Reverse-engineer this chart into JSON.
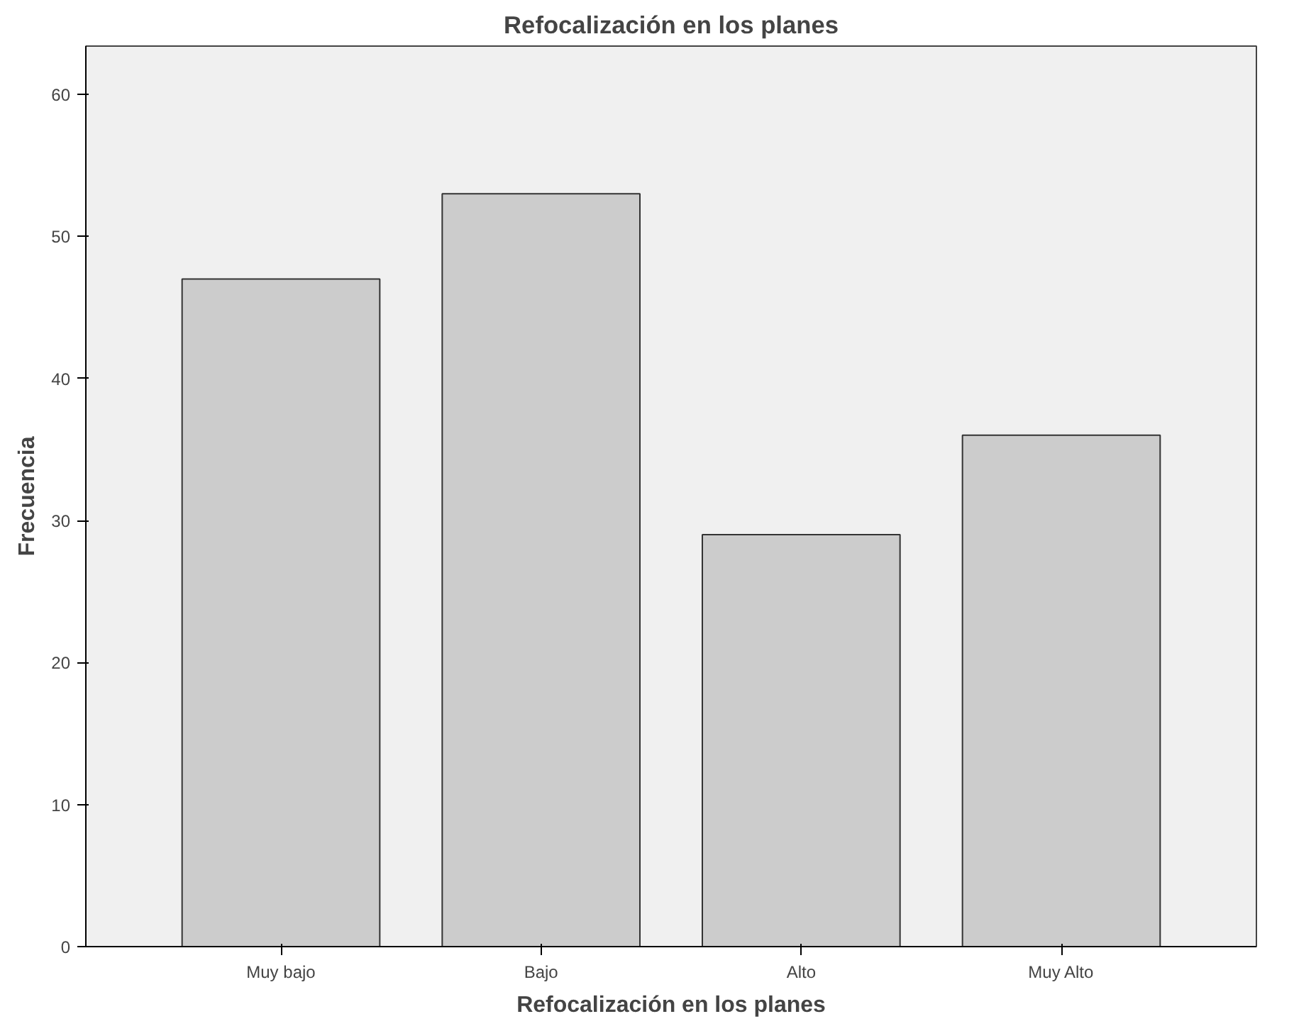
{
  "chart_data": {
    "type": "bar",
    "title": "Refocalización en los planes",
    "xlabel": "Refocalización en los planes",
    "ylabel": "Frecuencia",
    "categories": [
      "Muy bajo",
      "Bajo",
      "Alto",
      "Muy Alto"
    ],
    "values": [
      47,
      53,
      29,
      36
    ],
    "color": "#cccccc",
    "ylim": [
      0,
      63.4
    ],
    "yticks": [
      0,
      10,
      20,
      30,
      40,
      50,
      60
    ],
    "grid": false
  }
}
